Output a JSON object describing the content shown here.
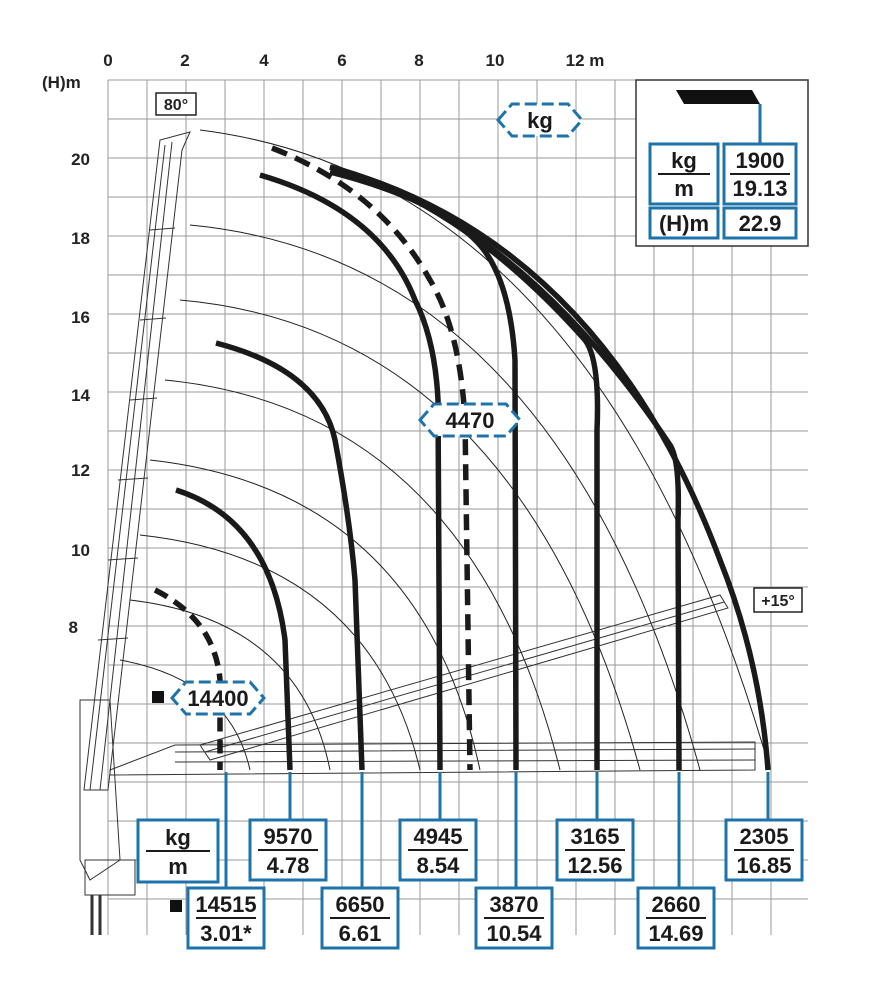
{
  "axes": {
    "x_ticks": [
      "0",
      "2",
      "4",
      "6",
      "8",
      "10",
      "12 m"
    ],
    "y_unit": "(H)m",
    "y_ticks": [
      "20",
      "18",
      "16",
      "14",
      "12",
      "10",
      "8"
    ]
  },
  "angles": {
    "max": "80°",
    "min": "+15°"
  },
  "legend": {
    "unit_kg": "kg",
    "unit_m": "m",
    "load": "1900",
    "reach": "19.13",
    "height_label": "(H)m",
    "height": "22.9"
  },
  "units_box": {
    "kg": "kg",
    "m": "m"
  },
  "top_tag": "kg",
  "dashed_tags": {
    "inner": "14400",
    "middle": "4470"
  },
  "capacities": [
    {
      "kg": "14515",
      "m": "3.01*",
      "marker": "■"
    },
    {
      "kg": "9570",
      "m": "4.78"
    },
    {
      "kg": "6650",
      "m": "6.61"
    },
    {
      "kg": "4945",
      "m": "8.54"
    },
    {
      "kg": "3870",
      "m": "10.54"
    },
    {
      "kg": "3165",
      "m": "12.56"
    },
    {
      "kg": "2660",
      "m": "14.69"
    },
    {
      "kg": "2305",
      "m": "16.85"
    }
  ],
  "marker": "■",
  "colors": {
    "accent": "#1e73a8",
    "line": "#1a1a1a",
    "grid": "#9a9a9a"
  }
}
